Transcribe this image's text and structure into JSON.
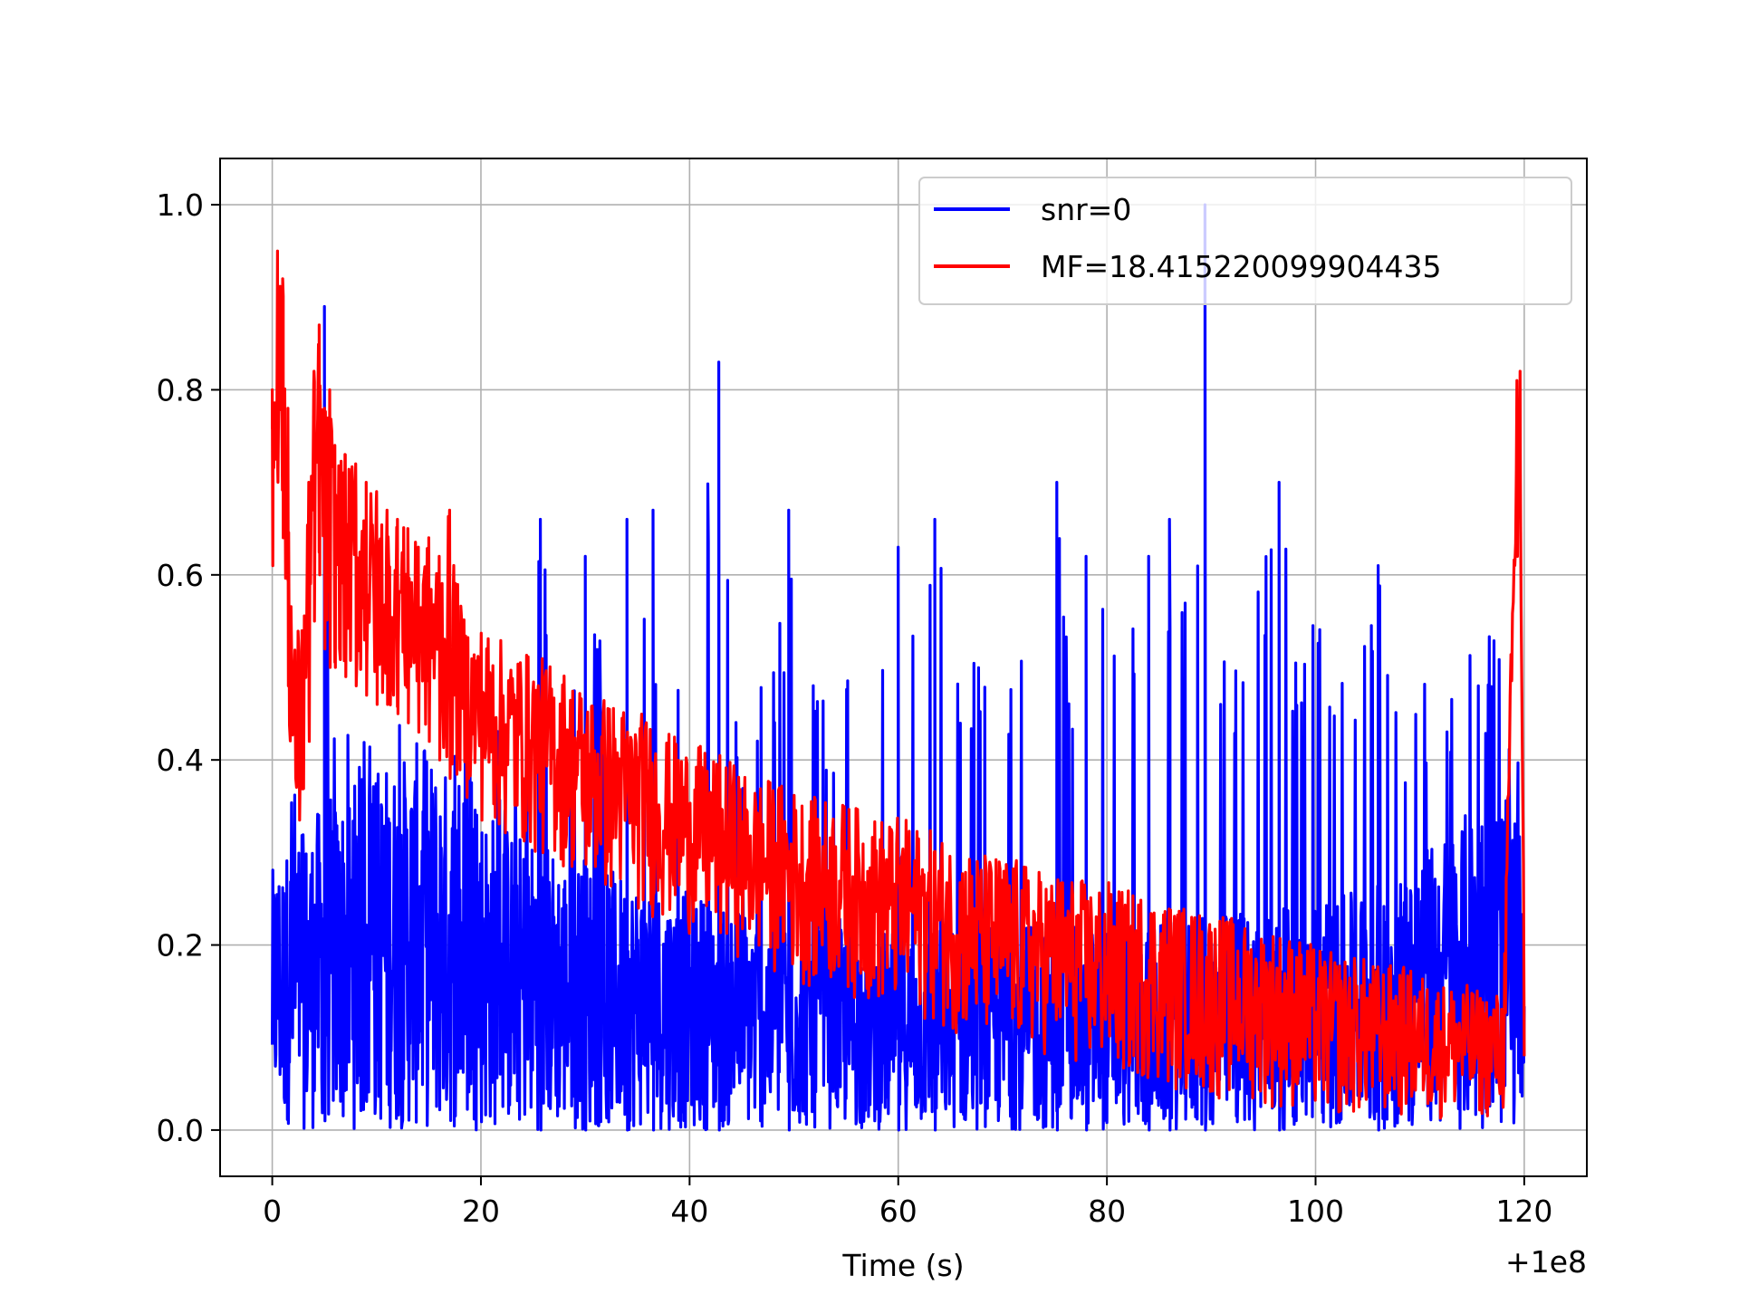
{
  "chart_data": {
    "type": "line",
    "title": "",
    "xlabel": "Time (s)",
    "ylabel": "",
    "x_offset_label": "+1e8",
    "xlim": [
      -5,
      126
    ],
    "ylim": [
      -0.05,
      1.05
    ],
    "xticks": [
      0,
      20,
      40,
      60,
      80,
      100,
      120
    ],
    "xtick_labels": [
      "0",
      "20",
      "40",
      "60",
      "80",
      "100",
      "120"
    ],
    "yticks": [
      0.0,
      0.2,
      0.4,
      0.6,
      0.8,
      1.0
    ],
    "ytick_labels": [
      "0.0",
      "0.2",
      "0.4",
      "0.6",
      "0.8",
      "1.0"
    ],
    "grid": true,
    "legend_position": "top-right",
    "series": [
      {
        "name": "snr=0",
        "color": "#0000ff",
        "x": [
          0,
          0.5,
          1,
          2,
          3,
          4,
          5,
          6,
          8,
          10,
          12,
          14,
          16,
          18,
          20,
          22,
          24,
          25.7,
          28,
          30,
          32,
          34,
          36.5,
          38,
          40,
          42.8,
          44,
          46,
          48,
          49.5,
          52,
          54,
          56,
          58,
          60,
          62,
          63.5,
          66,
          68,
          70,
          72,
          74,
          75.2,
          76,
          78,
          80,
          82,
          84,
          86,
          88,
          89.4,
          90,
          92,
          94,
          96.5,
          98,
          100,
          102,
          104,
          106,
          108,
          110,
          112,
          114,
          116,
          118,
          119.5,
          120
        ],
        "y_max": [
          0.32,
          0.36,
          0.38,
          0.4,
          0.38,
          0.43,
          0.89,
          0.44,
          0.42,
          0.46,
          0.52,
          0.5,
          0.48,
          0.46,
          0.44,
          0.46,
          0.42,
          0.66,
          0.44,
          0.62,
          0.5,
          0.66,
          0.67,
          0.48,
          0.54,
          0.83,
          0.5,
          0.46,
          0.54,
          0.67,
          0.54,
          0.5,
          0.52,
          0.5,
          0.63,
          0.52,
          0.66,
          0.5,
          0.56,
          0.54,
          0.58,
          0.6,
          0.7,
          0.55,
          0.62,
          0.56,
          0.58,
          0.62,
          0.66,
          0.6,
          1.0,
          0.56,
          0.55,
          0.58,
          0.7,
          0.58,
          0.6,
          0.56,
          0.55,
          0.61,
          0.5,
          0.5,
          0.47,
          0.6,
          0.58,
          0.52,
          0.48,
          0.39
        ],
        "y_min": [
          0.01,
          0.02,
          0.0,
          0.01,
          0.0,
          0.0,
          0.01,
          0.0,
          0.0,
          0.0,
          0.0,
          0.0,
          0.0,
          0.0,
          0.0,
          0.0,
          0.0,
          0.0,
          0.0,
          0.0,
          0.0,
          0.0,
          0.0,
          0.0,
          0.0,
          0.0,
          0.0,
          0.0,
          0.0,
          0.0,
          0.0,
          0.0,
          0.0,
          0.0,
          0.0,
          0.0,
          0.0,
          0.0,
          0.0,
          0.0,
          0.0,
          0.0,
          0.0,
          0.0,
          0.0,
          0.0,
          0.0,
          0.0,
          0.0,
          0.0,
          0.0,
          0.0,
          0.0,
          0.0,
          0.0,
          0.0,
          0.0,
          0.0,
          0.0,
          0.0,
          0.0,
          0.0,
          0.0,
          0.0,
          0.0,
          0.0,
          0.0,
          0.06
        ],
        "y_body": [
          0.28,
          0.3,
          0.3,
          0.32,
          0.32,
          0.34,
          0.36,
          0.36,
          0.38,
          0.4,
          0.4,
          0.42,
          0.4,
          0.38,
          0.36,
          0.34,
          0.32,
          0.32,
          0.3,
          0.3,
          0.28,
          0.28,
          0.27,
          0.26,
          0.26,
          0.25,
          0.25,
          0.24,
          0.24,
          0.24,
          0.23,
          0.23,
          0.22,
          0.22,
          0.22,
          0.22,
          0.22,
          0.22,
          0.22,
          0.22,
          0.22,
          0.22,
          0.22,
          0.22,
          0.22,
          0.22,
          0.22,
          0.22,
          0.23,
          0.23,
          0.23,
          0.23,
          0.24,
          0.24,
          0.24,
          0.24,
          0.25,
          0.25,
          0.26,
          0.27,
          0.28,
          0.3,
          0.32,
          0.34,
          0.36,
          0.36,
          0.34,
          0.2
        ]
      },
      {
        "name": "MF=18.415220099904435",
        "color": "#ff0000",
        "x": [
          0,
          0.5,
          1,
          1.5,
          2,
          2.5,
          3,
          3.5,
          4,
          4.5,
          5,
          5.5,
          6,
          7,
          8,
          9,
          10,
          11,
          12,
          13,
          14,
          15,
          16,
          17,
          18,
          19,
          20,
          22,
          24,
          26,
          28,
          30,
          32,
          34,
          36,
          38,
          40,
          42,
          44,
          46,
          48,
          50,
          52,
          54,
          56,
          58,
          60,
          62,
          64,
          66,
          68,
          70,
          72,
          74,
          76,
          78,
          80,
          82,
          84,
          86,
          88,
          90,
          92,
          94,
          96,
          98,
          100,
          102,
          104,
          106,
          108,
          110,
          112,
          114,
          116,
          118,
          119.3,
          119.6,
          120
        ],
        "y_max": [
          0.8,
          0.95,
          0.92,
          0.78,
          0.52,
          0.55,
          0.58,
          0.7,
          0.82,
          0.87,
          0.78,
          0.8,
          0.74,
          0.73,
          0.72,
          0.7,
          0.69,
          0.67,
          0.66,
          0.65,
          0.63,
          0.64,
          0.62,
          0.67,
          0.57,
          0.55,
          0.55,
          0.53,
          0.52,
          0.51,
          0.5,
          0.48,
          0.47,
          0.46,
          0.45,
          0.43,
          0.42,
          0.41,
          0.4,
          0.38,
          0.38,
          0.37,
          0.36,
          0.36,
          0.35,
          0.34,
          0.34,
          0.33,
          0.32,
          0.31,
          0.3,
          0.3,
          0.29,
          0.28,
          0.28,
          0.27,
          0.27,
          0.26,
          0.26,
          0.25,
          0.24,
          0.24,
          0.23,
          0.22,
          0.22,
          0.21,
          0.2,
          0.19,
          0.19,
          0.18,
          0.18,
          0.17,
          0.16,
          0.16,
          0.15,
          0.15,
          0.81,
          0.82,
          0.2
        ],
        "y_min": [
          0.61,
          0.7,
          0.64,
          0.48,
          0.3,
          0.28,
          0.3,
          0.42,
          0.55,
          0.6,
          0.52,
          0.5,
          0.5,
          0.49,
          0.48,
          0.47,
          0.46,
          0.46,
          0.45,
          0.44,
          0.43,
          0.42,
          0.4,
          0.38,
          0.37,
          0.35,
          0.33,
          0.31,
          0.3,
          0.29,
          0.28,
          0.26,
          0.25,
          0.24,
          0.23,
          0.22,
          0.21,
          0.2,
          0.19,
          0.18,
          0.17,
          0.16,
          0.15,
          0.15,
          0.14,
          0.13,
          0.12,
          0.12,
          0.11,
          0.1,
          0.09,
          0.09,
          0.08,
          0.08,
          0.07,
          0.06,
          0.06,
          0.05,
          0.05,
          0.04,
          0.04,
          0.03,
          0.03,
          0.03,
          0.02,
          0.02,
          0.01,
          0.01,
          0.01,
          0.01,
          0.01,
          0.01,
          0.01,
          0.01,
          0.01,
          0.01,
          0.62,
          0.65,
          0.01
        ]
      }
    ]
  }
}
